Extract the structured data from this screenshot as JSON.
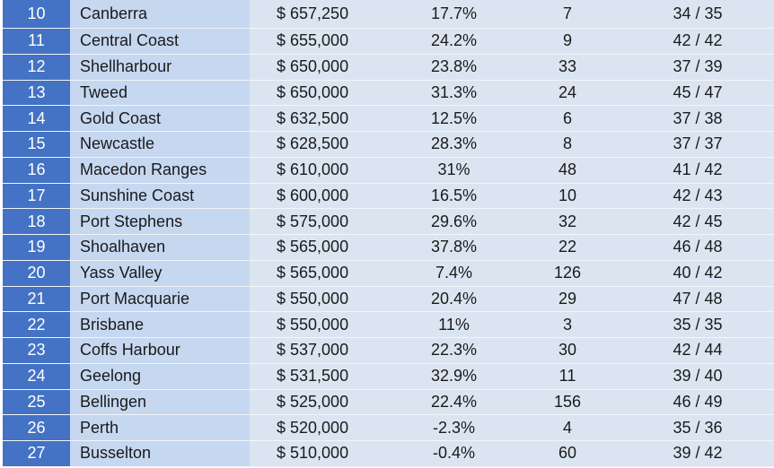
{
  "rows": [
    {
      "rank": "10",
      "name": "Canberra",
      "price": "$ 657,250",
      "growth": "17.7%",
      "count": "7",
      "score": "34 / 35"
    },
    {
      "rank": "11",
      "name": "Central Coast",
      "price": "$ 655,000",
      "growth": "24.2%",
      "count": "9",
      "score": "42 / 42"
    },
    {
      "rank": "12",
      "name": "Shellharbour",
      "price": "$ 650,000",
      "growth": "23.8%",
      "count": "33",
      "score": "37 / 39"
    },
    {
      "rank": "13",
      "name": "Tweed",
      "price": "$ 650,000",
      "growth": "31.3%",
      "count": "24",
      "score": "45 / 47"
    },
    {
      "rank": "14",
      "name": "Gold Coast",
      "price": "$ 632,500",
      "growth": "12.5%",
      "count": "6",
      "score": "37 / 38"
    },
    {
      "rank": "15",
      "name": "Newcastle",
      "price": "$ 628,500",
      "growth": "28.3%",
      "count": "8",
      "score": "37 / 37"
    },
    {
      "rank": "16",
      "name": "Macedon Ranges",
      "price": "$ 610,000",
      "growth": "31%",
      "count": "48",
      "score": "41 / 42"
    },
    {
      "rank": "17",
      "name": "Sunshine Coast",
      "price": "$ 600,000",
      "growth": "16.5%",
      "count": "10",
      "score": "42 / 43"
    },
    {
      "rank": "18",
      "name": "Port Stephens",
      "price": "$ 575,000",
      "growth": "29.6%",
      "count": "32",
      "score": "42 / 45"
    },
    {
      "rank": "19",
      "name": "Shoalhaven",
      "price": "$ 565,000",
      "growth": "37.8%",
      "count": "22",
      "score": "46 / 48"
    },
    {
      "rank": "20",
      "name": "Yass Valley",
      "price": "$ 565,000",
      "growth": "7.4%",
      "count": "126",
      "score": "40 / 42"
    },
    {
      "rank": "21",
      "name": "Port Macquarie",
      "price": "$ 550,000",
      "growth": "20.4%",
      "count": "29",
      "score": "47 / 48"
    },
    {
      "rank": "22",
      "name": "Brisbane",
      "price": "$ 550,000",
      "growth": "11%",
      "count": "3",
      "score": "35 / 35"
    },
    {
      "rank": "23",
      "name": "Coffs Harbour",
      "price": "$ 537,000",
      "growth": "22.3%",
      "count": "30",
      "score": "42 / 44"
    },
    {
      "rank": "24",
      "name": "Geelong",
      "price": "$ 531,500",
      "growth": "32.9%",
      "count": "11",
      "score": "39 / 40"
    },
    {
      "rank": "25",
      "name": "Bellingen",
      "price": "$ 525,000",
      "growth": "22.4%",
      "count": "156",
      "score": "46 / 49"
    },
    {
      "rank": "26",
      "name": "Perth",
      "price": "$ 520,000",
      "growth": "-2.3%",
      "count": "4",
      "score": "35 / 36"
    },
    {
      "rank": "27",
      "name": "Busselton",
      "price": "$ 510,000",
      "growth": "-0.4%",
      "count": "60",
      "score": "39 / 42"
    }
  ],
  "colors": {
    "rank_bg": "#4472c4",
    "name_bg": "#c6d7f0",
    "data_bg": "#dbe5f1"
  }
}
